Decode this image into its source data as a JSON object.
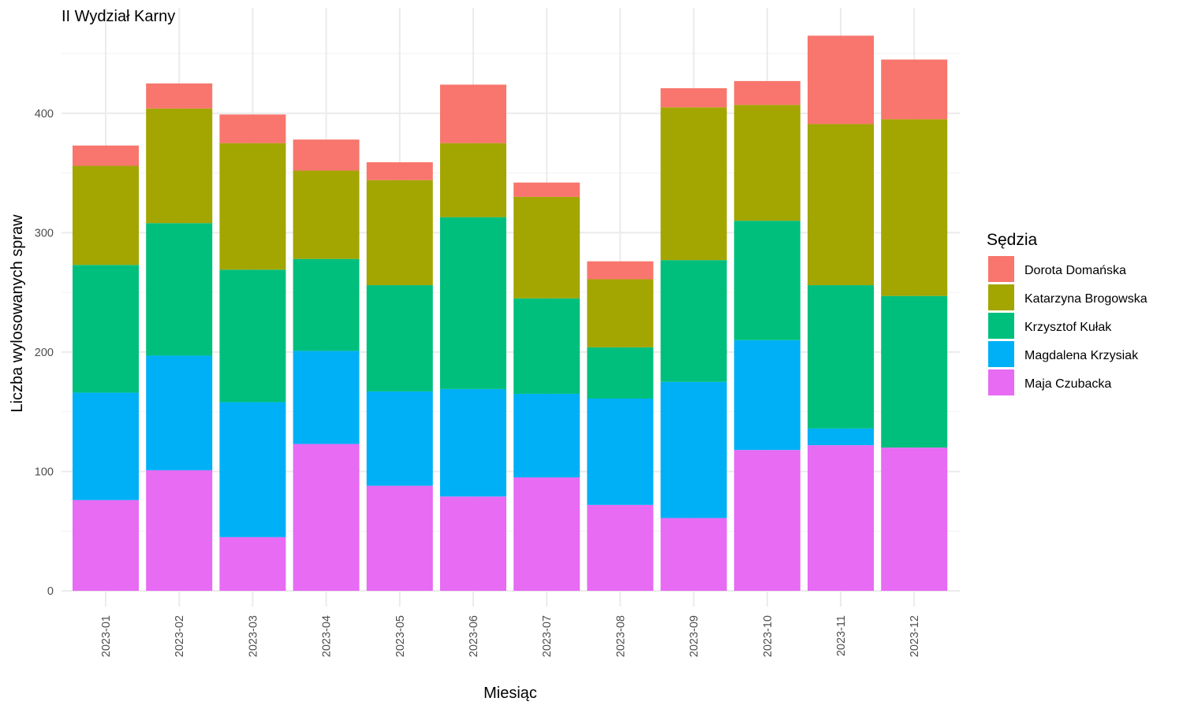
{
  "chart_data": {
    "type": "bar",
    "stacked": true,
    "title": "II Wydział Karny",
    "xlabel": "Miesiąc",
    "ylabel": "Liczba wylosowanych spraw",
    "ylim": [
      0,
      480
    ],
    "yticks": [
      0,
      100,
      200,
      300,
      400
    ],
    "grid": true,
    "legend": {
      "title": "Sędzia",
      "position": "right"
    },
    "categories": [
      "2023-01",
      "2023-02",
      "2023-03",
      "2023-04",
      "2023-05",
      "2023-06",
      "2023-07",
      "2023-08",
      "2023-09",
      "2023-10",
      "2023-11",
      "2023-12"
    ],
    "series": [
      {
        "name": "Dorota Domańska",
        "color": "#F8766D",
        "values": [
          17,
          21,
          24,
          26,
          15,
          49,
          12,
          15,
          16,
          20,
          74,
          50
        ]
      },
      {
        "name": "Katarzyna Brogowska",
        "color": "#A3A500",
        "values": [
          83,
          96,
          106,
          74,
          88,
          62,
          85,
          57,
          128,
          97,
          135,
          148
        ]
      },
      {
        "name": "Krzysztof Kułak",
        "color": "#00BF7D",
        "values": [
          107,
          111,
          111,
          77,
          89,
          144,
          80,
          43,
          102,
          100,
          120,
          127
        ]
      },
      {
        "name": "Magdalena Krzysiak",
        "color": "#00B0F6",
        "values": [
          90,
          96,
          113,
          78,
          79,
          90,
          70,
          89,
          114,
          92,
          14,
          0
        ]
      },
      {
        "name": "Maja Czubacka",
        "color": "#E76BF3",
        "values": [
          76,
          101,
          45,
          123,
          88,
          79,
          95,
          72,
          61,
          118,
          122,
          120
        ]
      }
    ]
  }
}
